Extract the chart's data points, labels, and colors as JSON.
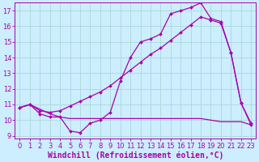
{
  "xlabel": "Windchill (Refroidissement éolien,°C)",
  "xlim": [
    0,
    23
  ],
  "ylim": [
    9,
    17
  ],
  "xticks": [
    0,
    1,
    2,
    3,
    4,
    5,
    6,
    7,
    8,
    9,
    10,
    11,
    12,
    13,
    14,
    15,
    16,
    17,
    18,
    19,
    20,
    21,
    22,
    23
  ],
  "yticks": [
    9,
    10,
    11,
    12,
    13,
    14,
    15,
    16,
    17
  ],
  "bg_color": "#cceeff",
  "grid_color": "#aad8d8",
  "line_color": "#aa00aa",
  "curve1_x": [
    0,
    1,
    2,
    3,
    4,
    5,
    6,
    7,
    8,
    9,
    10,
    11,
    12,
    13,
    14,
    15,
    16,
    17,
    18,
    19,
    20,
    21,
    22,
    23
  ],
  "curve1_y": [
    10.8,
    11.0,
    10.4,
    10.2,
    10.2,
    9.3,
    9.2,
    9.8,
    10.0,
    10.5,
    12.5,
    14.0,
    15.0,
    15.2,
    15.5,
    16.8,
    17.0,
    17.2,
    17.5,
    16.5,
    16.3,
    14.3,
    11.1,
    9.8
  ],
  "curve2_x": [
    0,
    1,
    2,
    3,
    4,
    5,
    6,
    7,
    8,
    9,
    10,
    11,
    12,
    13,
    14,
    15,
    16,
    17,
    18,
    19,
    20,
    21,
    22,
    23
  ],
  "curve2_y": [
    10.8,
    11.0,
    10.7,
    10.4,
    10.2,
    10.1,
    10.1,
    10.1,
    10.1,
    10.1,
    10.1,
    10.1,
    10.1,
    10.1,
    10.1,
    10.1,
    10.1,
    10.1,
    10.1,
    10.0,
    9.9,
    9.9,
    9.9,
    9.7
  ],
  "curve3_x": [
    0,
    1,
    2,
    3,
    4,
    5,
    6,
    7,
    8,
    9,
    10,
    11,
    12,
    13,
    14,
    15,
    16,
    17,
    18,
    19,
    20,
    21,
    22,
    23
  ],
  "curve3_y": [
    10.8,
    11.0,
    10.6,
    10.5,
    10.6,
    10.9,
    11.2,
    11.5,
    11.8,
    12.2,
    12.7,
    13.2,
    13.7,
    14.2,
    14.6,
    15.1,
    15.6,
    16.1,
    16.6,
    16.4,
    16.2,
    14.3,
    11.1,
    9.7
  ],
  "font_size": 7,
  "tick_fontsize": 6
}
